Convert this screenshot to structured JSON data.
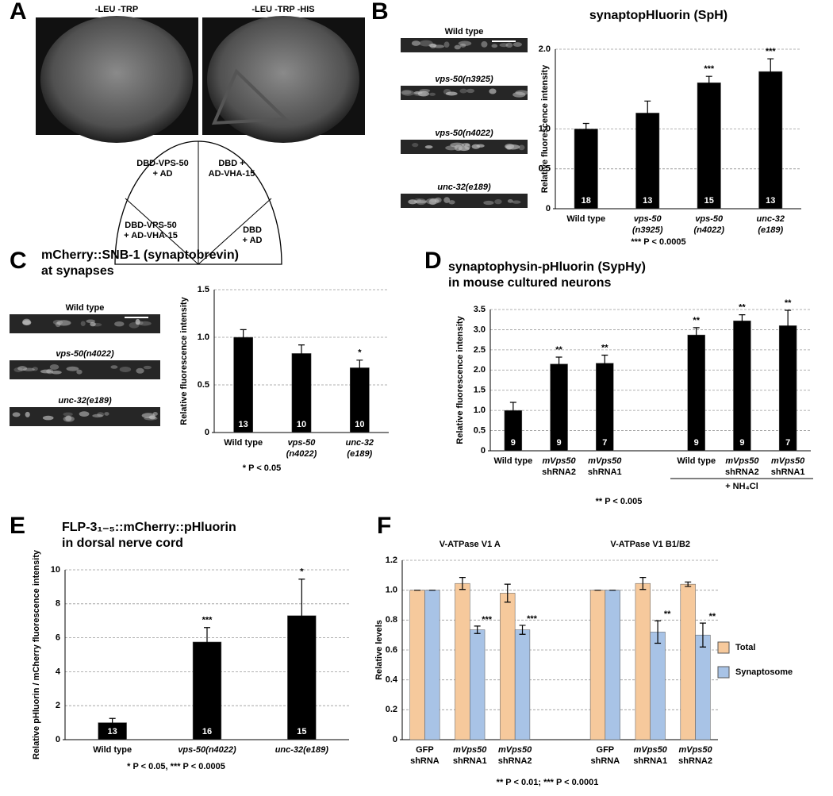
{
  "panel_labels": [
    "A",
    "B",
    "C",
    "D",
    "E",
    "F"
  ],
  "panel_a": {
    "plates": [
      "-LEU -TRP",
      "-LEU -TRP -HIS"
    ],
    "sectors": [
      [
        "DBD-VPS-50",
        "+ AD"
      ],
      [
        "DBD +",
        "AD-VHA-15"
      ],
      [
        "DBD-VPS-50",
        "+ AD-VHA-15"
      ],
      [
        "DBD",
        "+ AD"
      ]
    ]
  },
  "chart_data": [
    {
      "type": "bar",
      "title": [
        "synaptopHluorin (SpH)"
      ],
      "ylabel": "Relative fluorescence intensity",
      "image_labels": [
        "Wild type",
        "vps-50(n3925)",
        "vps-50(n4022)",
        "unc-32(e189)"
      ],
      "categories": [
        [
          "Wild type"
        ],
        [
          "vps-50",
          "(n3925)"
        ],
        [
          "vps-50",
          "(n4022)"
        ],
        [
          "unc-32",
          "(e189)"
        ]
      ],
      "values": [
        1.0,
        1.2,
        1.58,
        1.72
      ],
      "errors": [
        0.07,
        0.15,
        0.08,
        0.16
      ],
      "n": [
        18,
        13,
        15,
        13
      ],
      "significance": [
        null,
        null,
        "***",
        "***"
      ],
      "color": "#000000",
      "ylim": [
        0,
        2
      ],
      "yticks": [
        0,
        0.5,
        {
          "value": 1,
          "label": "1.0"
        },
        0.5,
        {
          "value": 2,
          "label": "2.0"
        }
      ],
      "grid": true,
      "footnote": "*** P < 0.0005"
    },
    {
      "type": "bar",
      "title": [
        "mCherry::SNB-1 (synaptobrevin)",
        "at synapses"
      ],
      "ylabel": "Relative fluorescence intensity",
      "image_labels": [
        "Wild type",
        "vps-50(n4022)",
        "unc-32(e189)"
      ],
      "categories": [
        [
          "Wild type"
        ],
        [
          "vps-50",
          "(n4022)"
        ],
        [
          "unc-32",
          "(e189)"
        ]
      ],
      "values": [
        1.0,
        0.83,
        0.68
      ],
      "errors": [
        0.08,
        0.09,
        0.08
      ],
      "n": [
        13,
        10,
        10
      ],
      "significance": [
        null,
        null,
        "*"
      ],
      "color": "#000000",
      "ylim": [
        0,
        1.5
      ],
      "yticks": [
        0,
        0.5,
        {
          "value": 1,
          "label": "1.0"
        },
        1.5
      ],
      "grid": true,
      "footnote": "* P < 0.05"
    },
    {
      "type": "bar",
      "title": [
        "synaptophysin-pHluorin (SypHy)",
        "in mouse cultured neurons"
      ],
      "ylabel": "Relative fluorescence intensity",
      "categories": [
        [
          "Wild type"
        ],
        [
          "mVps50",
          "shRNA2"
        ],
        [
          "mVps50",
          "shRNA1"
        ],
        [
          "Wild type"
        ],
        [
          "mVps50",
          "shRNA2"
        ],
        [
          "mVps50",
          "shRNA1"
        ]
      ],
      "values": [
        1.0,
        2.15,
        2.17,
        2.87,
        3.22,
        3.1
      ],
      "errors": [
        0.2,
        0.17,
        0.2,
        0.18,
        0.15,
        0.38
      ],
      "n": [
        9,
        9,
        7,
        9,
        9,
        7
      ],
      "significance": [
        null,
        "**",
        "**",
        "**",
        "**",
        "**"
      ],
      "bracket_label": "+ NH₄Cl",
      "color": "#000000",
      "ylim": [
        0,
        3.5
      ],
      "yticks": [
        0,
        0.5,
        {
          "value": 1,
          "label": "1.0"
        },
        1.5,
        {
          "value": 2,
          "label": "2.0"
        },
        2.5,
        {
          "value": 3,
          "label": "3.0"
        },
        3.5
      ],
      "grid": true,
      "footnote": "** P < 0.005"
    },
    {
      "type": "bar",
      "title": [
        "FLP-3₁₋₅::mCherry::pHluorin",
        "in dorsal nerve cord"
      ],
      "ylabel": "Relative pHluorin / mCherry fluorescence intensity",
      "categories": [
        [
          "Wild type"
        ],
        [
          "vps-50(n4022)"
        ],
        [
          "unc-32(e189)"
        ]
      ],
      "values": [
        1.0,
        5.75,
        7.3
      ],
      "errors": [
        0.25,
        0.85,
        2.15
      ],
      "n": [
        13,
        16,
        15
      ],
      "significance": [
        null,
        "***",
        "*"
      ],
      "color": "#000000",
      "ylim": [
        0,
        10
      ],
      "yticks": [
        0,
        2,
        4,
        6,
        8,
        10
      ],
      "grid": true,
      "footnote": "* P < 0.05, *** P < 0.0005"
    },
    {
      "type": "grouped_bar",
      "group_titles": [
        "V-ATPase V1 A",
        "V-ATPase V1 B1/B2"
      ],
      "ylabel": "Relative levels",
      "categories": [
        [
          "GFP",
          "shRNA"
        ],
        [
          "mVps50",
          "shRNA1"
        ],
        [
          "mVps50",
          "shRNA2"
        ],
        [
          "GFP",
          "shRNA"
        ],
        [
          "mVps50",
          "shRNA1"
        ],
        [
          "mVps50",
          "shRNA2"
        ]
      ],
      "series": [
        {
          "name": "Total",
          "color": "#f6c99c",
          "values": [
            1.0,
            1.045,
            0.98,
            1.0,
            1.045,
            1.04
          ],
          "errors": [
            0,
            0.04,
            0.06,
            0,
            0.04,
            0.015
          ],
          "significance": [
            null,
            null,
            null,
            null,
            null,
            null
          ]
        },
        {
          "name": "Synaptosome",
          "color": "#a8c3e6",
          "values": [
            1.0,
            0.735,
            0.735,
            1.0,
            0.72,
            0.7
          ],
          "errors": [
            0,
            0.025,
            0.03,
            0,
            0.075,
            0.08
          ],
          "significance": [
            null,
            "***",
            "***",
            null,
            "**",
            "**"
          ]
        }
      ],
      "ylim": [
        0,
        1.2
      ],
      "yticks": [
        0,
        0.2,
        0.4,
        0.6,
        0.8,
        {
          "value": 1,
          "label": "1.0"
        },
        1.2
      ],
      "grid": true,
      "legend": "right",
      "footnote": "** P < 0.01; *** P < 0.0001"
    }
  ]
}
